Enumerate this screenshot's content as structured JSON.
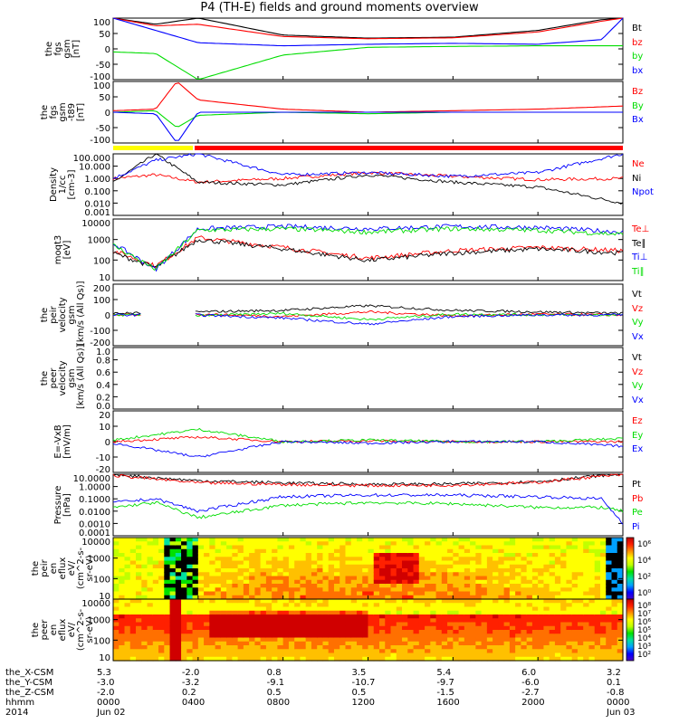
{
  "title": "P4 (TH-E) fields and ground moments overview",
  "colors": {
    "black": "#000000",
    "red": "#ff0000",
    "green": "#00dd00",
    "blue": "#0000ff",
    "yellow": "#ffff00"
  },
  "panels": [
    {
      "id": "fgs-gsm",
      "ylabel": [
        "the",
        "fgs",
        "gsm",
        "[nT]"
      ],
      "ticks": [
        "100",
        "50",
        "0",
        "-50",
        "-100"
      ],
      "legend": [
        {
          "t": "Bt",
          "c": "black"
        },
        {
          "t": "bz",
          "c": "red"
        },
        {
          "t": "by",
          "c": "green"
        },
        {
          "t": "bx",
          "c": "blue"
        }
      ]
    },
    {
      "id": "fgs-dt",
      "ylabel": [
        "the",
        "fgs",
        "gsm",
        "-t89",
        "[nT]"
      ],
      "ticks": [
        "100",
        "50",
        "0",
        "-50",
        "-100"
      ],
      "legend": [
        {
          "t": "Bz",
          "c": "red"
        },
        {
          "t": "By",
          "c": "green"
        },
        {
          "t": "Bx",
          "c": "blue"
        }
      ]
    },
    {
      "id": "density",
      "ylabel": [
        "Density",
        "1/cc",
        "[cm-3]"
      ],
      "ticks": [
        "100.000",
        "10.000",
        "1.000",
        "0.100",
        "0.010",
        "0.001"
      ],
      "legend": [
        {
          "t": "Ne",
          "c": "red"
        },
        {
          "t": "Ni",
          "c": "black"
        },
        {
          "t": "Npot",
          "c": "blue"
        }
      ]
    },
    {
      "id": "temp",
      "ylabel": [
        "moqt3",
        "[eV]"
      ],
      "ticks": [
        "10000",
        "1000",
        "100",
        "10"
      ],
      "legend": [
        {
          "t": "Te⊥",
          "c": "red"
        },
        {
          "t": "Te∥",
          "c": "black"
        },
        {
          "t": "Ti⊥",
          "c": "blue"
        },
        {
          "t": "Ti∥",
          "c": "green"
        }
      ]
    },
    {
      "id": "vel-i",
      "ylabel": [
        "the",
        "peir",
        "velocity",
        "gsm",
        "[km/s (All Qs)]"
      ],
      "ticks": [
        "200",
        "100",
        "0",
        "-100",
        "-200"
      ],
      "legend": [
        {
          "t": "Vt",
          "c": "black"
        },
        {
          "t": "Vz",
          "c": "red"
        },
        {
          "t": "Vy",
          "c": "green"
        },
        {
          "t": "Vx",
          "c": "blue"
        }
      ]
    },
    {
      "id": "vel-e",
      "ylabel": [
        "the",
        "peer",
        "velocity",
        "gsm",
        "[km/s (All Qs)]"
      ],
      "ticks": [
        "1.0",
        "0.8",
        "0.6",
        "0.4",
        "0.2",
        "0.0"
      ],
      "legend": [
        {
          "t": "Vt",
          "c": "black"
        },
        {
          "t": "Vz",
          "c": "red"
        },
        {
          "t": "Vy",
          "c": "green"
        },
        {
          "t": "Vx",
          "c": "blue"
        }
      ]
    },
    {
      "id": "efield",
      "ylabel": [
        "E=-VxB",
        "[mV/m]"
      ],
      "ticks": [
        "20",
        "10",
        "0",
        "-10",
        "-20"
      ],
      "legend": [
        {
          "t": "Ez",
          "c": "red"
        },
        {
          "t": "Ey",
          "c": "green"
        },
        {
          "t": "Ex",
          "c": "blue"
        }
      ]
    },
    {
      "id": "pressure",
      "ylabel": [
        "Pressure",
        "[nPa]"
      ],
      "ticks": [
        "10.0000",
        "1.0000",
        "0.1000",
        "0.0100",
        "0.0010",
        "0.0001"
      ],
      "legend": [
        {
          "t": "Pt",
          "c": "black"
        },
        {
          "t": "Pb",
          "c": "red"
        },
        {
          "t": "Pe",
          "c": "green"
        },
        {
          "t": "Pi",
          "c": "blue"
        }
      ]
    },
    {
      "id": "ion-spec",
      "ylabel": [
        "the",
        "peir",
        "en",
        "eflux",
        "eV/",
        "(cm^2-s-",
        "sr-eV)"
      ],
      "ticks": [
        "10000",
        "1000",
        "100",
        "10"
      ],
      "cbar": [
        "10⁶",
        "10⁴",
        "10²",
        "10⁰"
      ],
      "legend": []
    },
    {
      "id": "ele-spec",
      "ylabel": [
        "the",
        "peer",
        "en",
        "eflux",
        "eV/",
        "(cm^2-s-",
        "sr-eV)"
      ],
      "ticks": [
        "10000",
        "1000",
        "100",
        "10"
      ],
      "cbar": [
        "10⁸",
        "10⁷",
        "10⁶",
        "10⁵",
        "10⁴",
        "10³",
        "10²"
      ],
      "legend": []
    }
  ],
  "footer": {
    "rows": [
      {
        "label": "the_X-CSM",
        "vals": [
          "5.3",
          "-2.0",
          "0.8",
          "3.5",
          "5.4",
          "6.0",
          "3.2"
        ]
      },
      {
        "label": "the_Y-CSM",
        "vals": [
          "-3.0",
          "-3.2",
          "-9.1",
          "-10.7",
          "-9.7",
          "-6.0",
          "0.1"
        ]
      },
      {
        "label": "the_Z-CSM",
        "vals": [
          "-2.0",
          "0.2",
          "0.5",
          "0.5",
          "-1.5",
          "-2.7",
          "-0.8"
        ]
      },
      {
        "label": "hhmm",
        "vals": [
          "0000",
          "0400",
          "0800",
          "1200",
          "1600",
          "2000",
          "0000"
        ]
      },
      {
        "label": "2014",
        "vals": [
          "Jun 02",
          "",
          "",
          "",
          "",
          "",
          "Jun 03"
        ]
      }
    ]
  },
  "chart_data": [
    {
      "type": "line",
      "title": "P4 (TH-E) fields and ground moments overview",
      "ylabel": "the fgs gsm [nT]",
      "x": [
        "0000",
        "0200",
        "0400",
        "0800",
        "1200",
        "1600",
        "2000",
        "2300",
        "0000"
      ],
      "ylim": [
        -100,
        100
      ],
      "series": [
        {
          "name": "Bt",
          "values": [
            100,
            80,
            100,
            45,
            35,
            38,
            60,
            95,
            100
          ]
        },
        {
          "name": "bz",
          "values": [
            100,
            75,
            80,
            40,
            33,
            36,
            55,
            90,
            100
          ]
        },
        {
          "name": "by",
          "values": [
            -10,
            -15,
            -100,
            -20,
            5,
            8,
            10,
            10,
            10
          ]
        },
        {
          "name": "bx",
          "values": [
            100,
            60,
            20,
            10,
            15,
            18,
            15,
            30,
            100
          ]
        }
      ]
    },
    {
      "type": "line",
      "ylabel": "the fgs gsm -t89 [nT]",
      "ylim": [
        -100,
        100
      ],
      "x": [
        "0000",
        "0200",
        "0300",
        "0400",
        "0800",
        "1200",
        "1600",
        "2000",
        "0000"
      ],
      "series": [
        {
          "name": "Bz",
          "values": [
            5,
            10,
            100,
            40,
            10,
            0,
            5,
            10,
            20
          ]
        },
        {
          "name": "By",
          "values": [
            0,
            5,
            -50,
            -10,
            0,
            -5,
            0,
            0,
            0
          ]
        },
        {
          "name": "Bx",
          "values": [
            0,
            -5,
            -100,
            0,
            0,
            0,
            0,
            0,
            0
          ]
        }
      ]
    },
    {
      "type": "line",
      "ylabel": "Density 1/cc [cm-3]",
      "ylim": [
        0.001,
        100
      ],
      "log": true,
      "x": [
        "0000",
        "0200",
        "0400",
        "0800",
        "1200",
        "1600",
        "2000",
        "0000"
      ],
      "series": [
        {
          "name": "Ne",
          "values": [
            1,
            2,
            0.5,
            1,
            3,
            1.5,
            0.8,
            1
          ]
        },
        {
          "name": "Ni",
          "values": [
            0.5,
            100,
            0.5,
            0.3,
            2,
            0.5,
            0.2,
            0.01
          ]
        },
        {
          "name": "Npot",
          "values": [
            1,
            30,
            100,
            2,
            3,
            1.5,
            3,
            100
          ]
        }
      ]
    },
    {
      "type": "line",
      "ylabel": "moqt3 [eV]",
      "ylim": [
        5,
        10000
      ],
      "log": true,
      "x": [
        "0000",
        "0200",
        "0400",
        "0800",
        "1200",
        "1600",
        "2000",
        "0000"
      ],
      "series": [
        {
          "name": "Te⊥",
          "values": [
            200,
            30,
            1000,
            300,
            80,
            200,
            300,
            200
          ]
        },
        {
          "name": "Te∥",
          "values": [
            150,
            25,
            800,
            250,
            60,
            150,
            250,
            150
          ]
        },
        {
          "name": "Ti⊥",
          "values": [
            500,
            20,
            3000,
            4000,
            3000,
            4000,
            3500,
            2000
          ]
        },
        {
          "name": "Ti∥",
          "values": [
            400,
            20,
            2500,
            3000,
            2000,
            3000,
            2500,
            1500
          ]
        }
      ]
    },
    {
      "type": "line",
      "ylabel": "the peir velocity gsm [km/s (All Qs)]",
      "ylim": [
        -200,
        200
      ],
      "x": [
        "0000",
        "0400",
        "0800",
        "1200",
        "1600",
        "2000",
        "0000"
      ],
      "series": [
        {
          "name": "Vt",
          "values": [
            10,
            20,
            30,
            60,
            30,
            20,
            10
          ]
        },
        {
          "name": "Vz",
          "values": [
            0,
            5,
            -10,
            20,
            -5,
            5,
            0
          ]
        },
        {
          "name": "Vy",
          "values": [
            0,
            -5,
            10,
            -30,
            5,
            0,
            0
          ]
        },
        {
          "name": "Vx",
          "values": [
            0,
            0,
            -20,
            -60,
            -10,
            0,
            0
          ]
        }
      ]
    },
    {
      "type": "line",
      "ylabel": "the peer velocity gsm [km/s (All Qs)]",
      "ylim": [
        0,
        1
      ],
      "series": []
    },
    {
      "type": "line",
      "ylabel": "E=-VxB [mV/m]",
      "ylim": [
        -20,
        20
      ],
      "x": [
        "0000",
        "0400",
        "0800",
        "1200",
        "1600",
        "2000",
        "0000"
      ],
      "series": [
        {
          "name": "Ez",
          "values": [
            0,
            3,
            0,
            0.5,
            0,
            0,
            0
          ]
        },
        {
          "name": "Ey",
          "values": [
            1,
            8,
            0,
            1,
            0,
            0,
            2
          ]
        },
        {
          "name": "Ex",
          "values": [
            -1,
            -10,
            0,
            -1,
            0,
            0,
            -3
          ]
        }
      ]
    },
    {
      "type": "line",
      "ylabel": "Pressure [nPa]",
      "ylim": [
        0.0001,
        10
      ],
      "log": true,
      "x": [
        "0000",
        "0200",
        "0400",
        "0800",
        "1200",
        "1600",
        "2000",
        "2300",
        "0000"
      ],
      "series": [
        {
          "name": "Pt",
          "values": [
            10,
            5,
            3,
            2,
            1.5,
            1.6,
            2.5,
            8,
            10
          ]
        },
        {
          "name": "Pb",
          "values": [
            8,
            4,
            2,
            1.5,
            1.2,
            1.3,
            2.2,
            7,
            9
          ]
        },
        {
          "name": "Pe",
          "values": [
            0.02,
            0.05,
            0.003,
            0.03,
            0.05,
            0.04,
            0.02,
            0.02,
            0.01
          ]
        },
        {
          "name": "Pi",
          "values": [
            0.05,
            0.1,
            0.01,
            0.15,
            0.2,
            0.2,
            0.15,
            0.1,
            0.001
          ]
        }
      ]
    },
    {
      "type": "heatmap",
      "ylabel": "the peir en eflux eV/(cm^2-s-sr-eV)",
      "ylim": [
        5,
        20000
      ],
      "log": true
    },
    {
      "type": "heatmap",
      "ylabel": "the peer en eflux eV/(cm^2-s-sr-eV)",
      "ylim": [
        5,
        20000
      ],
      "log": true
    }
  ]
}
